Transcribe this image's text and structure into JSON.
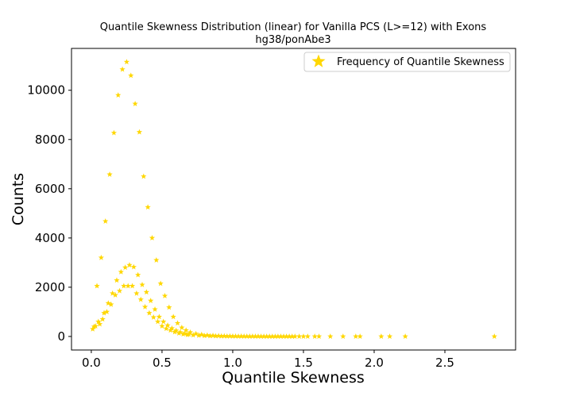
{
  "chart_data": {
    "type": "scatter",
    "title": "Quantile Skewness Distribution (linear) for Vanilla PCS (L>=12) with Exons",
    "subtitle": "hg38/ponAbe3",
    "xlabel": "Quantile Skewness",
    "ylabel": "Counts",
    "xlim": [
      -0.14,
      3.0
    ],
    "ylim": [
      -550,
      11700
    ],
    "xticks": [
      0.0,
      0.5,
      1.0,
      1.5,
      2.0,
      2.5
    ],
    "xtick_labels": [
      "0.0",
      "0.5",
      "1.0",
      "1.5",
      "2.0",
      "2.5"
    ],
    "yticks": [
      0,
      2000,
      4000,
      6000,
      8000,
      10000
    ],
    "ytick_labels": [
      "0",
      "2000",
      "4000",
      "6000",
      "8000",
      "10000"
    ],
    "grid": false,
    "legend_position": "top-right",
    "marker": "star",
    "series": [
      {
        "name": "Frequency of Quantile Skewness",
        "color": "#FFD700",
        "points": [
          [
            0.01,
            300
          ],
          [
            0.02,
            400
          ],
          [
            0.03,
            420
          ],
          [
            0.04,
            2050
          ],
          [
            0.05,
            600
          ],
          [
            0.06,
            500
          ],
          [
            0.07,
            3200
          ],
          [
            0.08,
            700
          ],
          [
            0.09,
            950
          ],
          [
            0.1,
            4680
          ],
          [
            0.11,
            1000
          ],
          [
            0.12,
            1350
          ],
          [
            0.13,
            6580
          ],
          [
            0.14,
            1300
          ],
          [
            0.15,
            1750
          ],
          [
            0.16,
            8270
          ],
          [
            0.17,
            1680
          ],
          [
            0.18,
            2280
          ],
          [
            0.19,
            9800
          ],
          [
            0.2,
            1850
          ],
          [
            0.21,
            2620
          ],
          [
            0.22,
            10850
          ],
          [
            0.23,
            2050
          ],
          [
            0.24,
            2800
          ],
          [
            0.25,
            11150
          ],
          [
            0.26,
            2050
          ],
          [
            0.27,
            2900
          ],
          [
            0.28,
            10600
          ],
          [
            0.29,
            2050
          ],
          [
            0.3,
            2820
          ],
          [
            0.31,
            9450
          ],
          [
            0.32,
            1750
          ],
          [
            0.33,
            2500
          ],
          [
            0.34,
            8300
          ],
          [
            0.35,
            1500
          ],
          [
            0.36,
            2100
          ],
          [
            0.37,
            6500
          ],
          [
            0.38,
            1200
          ],
          [
            0.39,
            1800
          ],
          [
            0.4,
            5250
          ],
          [
            0.41,
            950
          ],
          [
            0.42,
            1450
          ],
          [
            0.43,
            4000
          ],
          [
            0.44,
            780
          ],
          [
            0.45,
            1100
          ],
          [
            0.46,
            3100
          ],
          [
            0.47,
            600
          ],
          [
            0.48,
            800
          ],
          [
            0.49,
            2150
          ],
          [
            0.5,
            420
          ],
          [
            0.51,
            600
          ],
          [
            0.52,
            1650
          ],
          [
            0.53,
            320
          ],
          [
            0.54,
            450
          ],
          [
            0.55,
            1180
          ],
          [
            0.56,
            250
          ],
          [
            0.57,
            330
          ],
          [
            0.58,
            800
          ],
          [
            0.59,
            180
          ],
          [
            0.6,
            240
          ],
          [
            0.61,
            540
          ],
          [
            0.62,
            130
          ],
          [
            0.63,
            170
          ],
          [
            0.64,
            360
          ],
          [
            0.65,
            95
          ],
          [
            0.66,
            120
          ],
          [
            0.67,
            250
          ],
          [
            0.68,
            70
          ],
          [
            0.69,
            85
          ],
          [
            0.7,
            170
          ],
          [
            0.72,
            55
          ],
          [
            0.74,
            110
          ],
          [
            0.76,
            40
          ],
          [
            0.78,
            75
          ],
          [
            0.8,
            30
          ],
          [
            0.82,
            50
          ],
          [
            0.84,
            22
          ],
          [
            0.86,
            35
          ],
          [
            0.88,
            16
          ],
          [
            0.9,
            25
          ],
          [
            0.92,
            12
          ],
          [
            0.94,
            18
          ],
          [
            0.96,
            9
          ],
          [
            0.98,
            13
          ],
          [
            1.0,
            7
          ],
          [
            1.02,
            10
          ],
          [
            1.04,
            5
          ],
          [
            1.06,
            7
          ],
          [
            1.08,
            4
          ],
          [
            1.1,
            5
          ],
          [
            1.12,
            3
          ],
          [
            1.14,
            4
          ],
          [
            1.16,
            3
          ],
          [
            1.18,
            3
          ],
          [
            1.2,
            2
          ],
          [
            1.22,
            2
          ],
          [
            1.24,
            2
          ],
          [
            1.26,
            2
          ],
          [
            1.28,
            1
          ],
          [
            1.3,
            1
          ],
          [
            1.32,
            1
          ],
          [
            1.34,
            1
          ],
          [
            1.36,
            1
          ],
          [
            1.38,
            1
          ],
          [
            1.4,
            1
          ],
          [
            1.42,
            1
          ],
          [
            1.44,
            1
          ],
          [
            1.47,
            1
          ],
          [
            1.5,
            1
          ],
          [
            1.53,
            1
          ],
          [
            1.58,
            1
          ],
          [
            1.61,
            1
          ],
          [
            1.69,
            1
          ],
          [
            1.78,
            1
          ],
          [
            1.87,
            1
          ],
          [
            1.9,
            1
          ],
          [
            2.05,
            1
          ],
          [
            2.11,
            1
          ],
          [
            2.22,
            1
          ],
          [
            2.85,
            1
          ]
        ]
      }
    ]
  }
}
